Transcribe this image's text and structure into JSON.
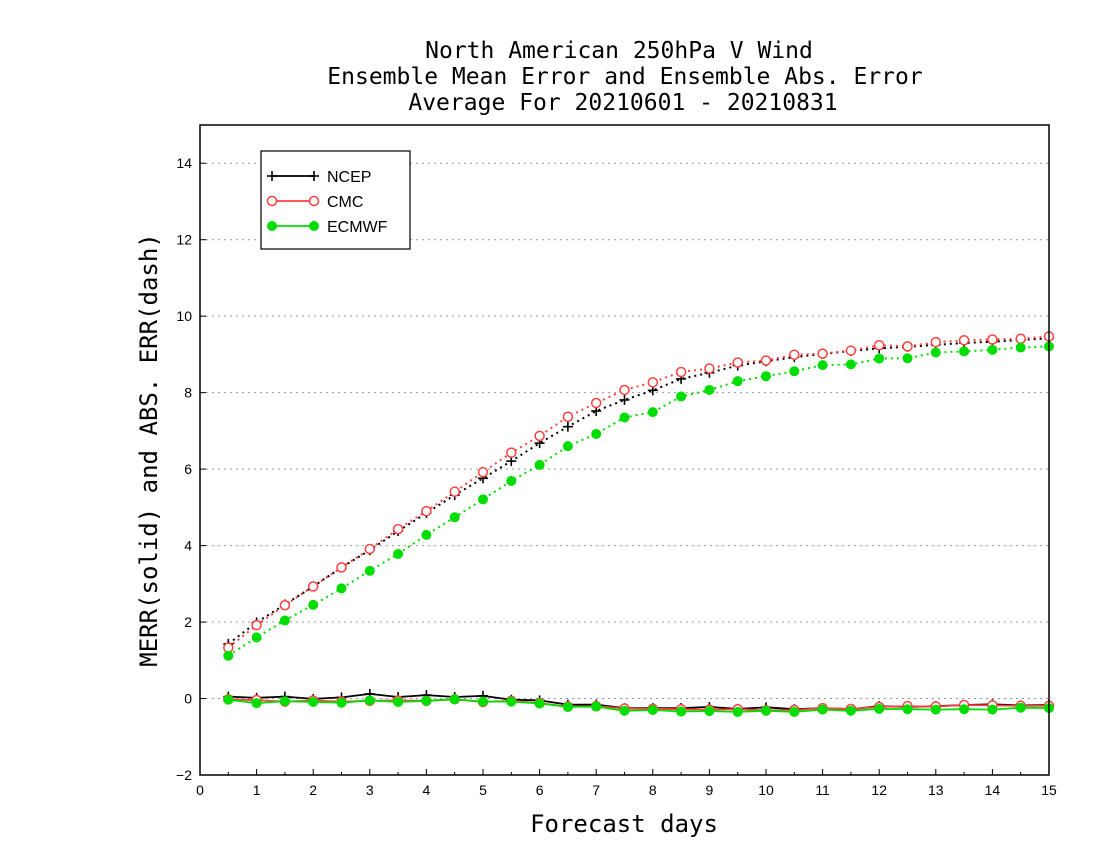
{
  "chart_data": {
    "type": "line",
    "title_lines": [
      "North American 250hPa V Wind",
      "Ensemble Mean Error and Ensemble Abs. Error",
      "Average For 20210601 - 20210831"
    ],
    "xlabel": "Forecast days",
    "ylabel": "MERR(solid) and ABS. ERR(dash)",
    "xlim": [
      0,
      15
    ],
    "ylim": [
      -2,
      15
    ],
    "xticks": [
      0,
      1,
      2,
      3,
      4,
      5,
      6,
      7,
      8,
      9,
      10,
      11,
      12,
      13,
      14,
      15
    ],
    "yticks": [
      -2,
      0,
      2,
      4,
      6,
      8,
      10,
      12,
      14
    ],
    "grid": "horizontal dotted",
    "legend_position": "top-left",
    "x": [
      0.5,
      1,
      1.5,
      2,
      2.5,
      3,
      3.5,
      4,
      4.5,
      5,
      5.5,
      6,
      6.5,
      7,
      7.5,
      8,
      8.5,
      9,
      9.5,
      10,
      10.5,
      11,
      11.5,
      12,
      12.5,
      13,
      13.5,
      14,
      14.5,
      15
    ],
    "series": [
      {
        "name": "NCEP",
        "color": "#000000",
        "marker": "plus",
        "abs_err": [
          1.43,
          1.99,
          2.46,
          2.93,
          3.43,
          3.88,
          4.38,
          4.85,
          5.32,
          5.76,
          6.21,
          6.68,
          7.11,
          7.52,
          7.81,
          8.06,
          8.36,
          8.52,
          8.71,
          8.82,
          8.93,
          9.01,
          9.09,
          9.16,
          9.2,
          9.25,
          9.3,
          9.33,
          9.38,
          9.42
        ],
        "mean_err": [
          0.05,
          0.02,
          0.05,
          -0.01,
          0.03,
          0.12,
          0.04,
          0.09,
          0.04,
          0.07,
          -0.03,
          -0.05,
          -0.16,
          -0.16,
          -0.25,
          -0.25,
          -0.25,
          -0.22,
          -0.27,
          -0.23,
          -0.28,
          -0.25,
          -0.28,
          -0.2,
          -0.22,
          -0.2,
          -0.17,
          -0.15,
          -0.18,
          -0.17
        ]
      },
      {
        "name": "CMC",
        "color": "#ff4040",
        "marker": "open-circle",
        "abs_err": [
          1.33,
          1.92,
          2.44,
          2.93,
          3.43,
          3.91,
          4.43,
          4.9,
          5.41,
          5.92,
          6.43,
          6.87,
          7.37,
          7.73,
          8.07,
          8.27,
          8.54,
          8.63,
          8.79,
          8.84,
          8.99,
          9.02,
          9.1,
          9.24,
          9.21,
          9.32,
          9.37,
          9.39,
          9.41,
          9.47
        ],
        "mean_err": [
          -0.02,
          -0.04,
          -0.08,
          -0.05,
          -0.08,
          -0.06,
          -0.05,
          -0.06,
          -0.02,
          -0.09,
          -0.06,
          -0.12,
          -0.21,
          -0.2,
          -0.26,
          -0.27,
          -0.28,
          -0.29,
          -0.28,
          -0.31,
          -0.3,
          -0.25,
          -0.27,
          -0.22,
          -0.2,
          -0.21,
          -0.17,
          -0.18,
          -0.19,
          -0.19
        ]
      },
      {
        "name": "ECMWF",
        "color": "#00dd00",
        "marker": "filled-circle",
        "abs_err": [
          1.12,
          1.6,
          2.04,
          2.45,
          2.88,
          3.34,
          3.78,
          4.28,
          4.74,
          5.21,
          5.69,
          6.11,
          6.6,
          6.92,
          7.35,
          7.49,
          7.9,
          8.07,
          8.3,
          8.43,
          8.56,
          8.72,
          8.74,
          8.89,
          8.9,
          9.05,
          9.08,
          9.12,
          9.18,
          9.21
        ],
        "mean_err": [
          -0.03,
          -0.12,
          -0.07,
          -0.09,
          -0.11,
          -0.05,
          -0.09,
          -0.06,
          -0.02,
          -0.08,
          -0.08,
          -0.13,
          -0.22,
          -0.21,
          -0.32,
          -0.3,
          -0.34,
          -0.33,
          -0.35,
          -0.32,
          -0.35,
          -0.29,
          -0.32,
          -0.27,
          -0.28,
          -0.29,
          -0.28,
          -0.29,
          -0.24,
          -0.25
        ]
      }
    ]
  }
}
